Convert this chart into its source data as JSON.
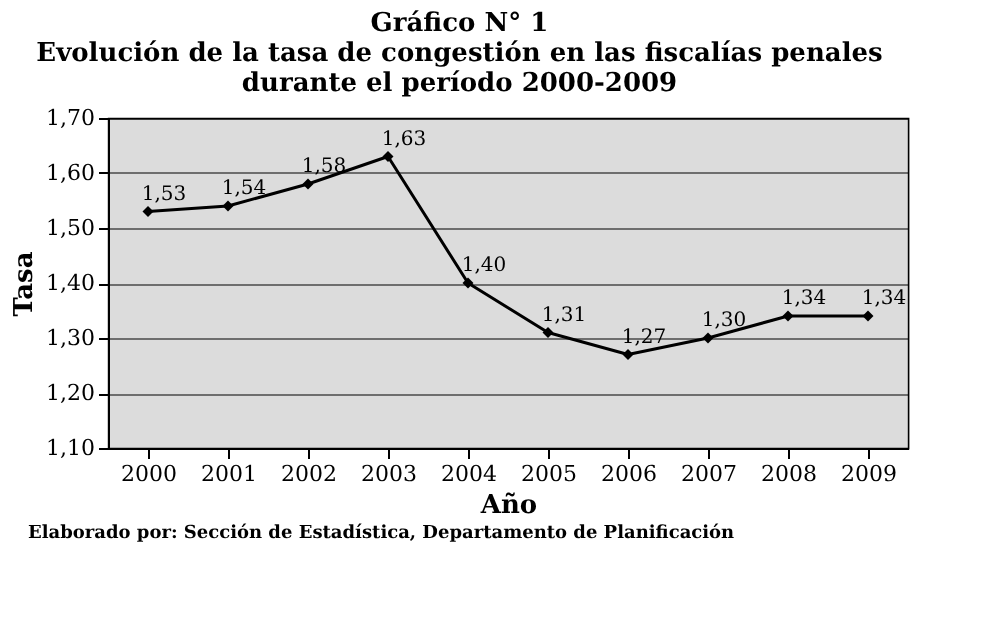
{
  "chart_data": {
    "type": "line",
    "title": "Gráfico N° 1",
    "subtitle": "Evolución de la tasa de congestión en las fiscalías penales durante el período 2000-2009",
    "xlabel": "Año",
    "ylabel": "Tasa",
    "categories": [
      "2000",
      "2001",
      "2002",
      "2003",
      "2004",
      "2005",
      "2006",
      "2007",
      "2008",
      "2009"
    ],
    "series": [
      {
        "color": "#000000",
        "values": [
          1.53,
          1.54,
          1.58,
          1.63,
          1.4,
          1.31,
          1.27,
          1.3,
          1.34,
          1.34
        ],
        "value_labels": [
          "1,53",
          "1,54",
          "1,58",
          "1,63",
          "1,40",
          "1,31",
          "1,27",
          "1,30",
          "1,34",
          "1,34"
        ]
      }
    ],
    "ylim": [
      1.1,
      1.7
    ],
    "yticks": [
      {
        "value": 1.1,
        "label": "1,10"
      },
      {
        "value": 1.2,
        "label": "1,20"
      },
      {
        "value": 1.3,
        "label": "1,30"
      },
      {
        "value": 1.4,
        "label": "1,40"
      },
      {
        "value": 1.5,
        "label": "1,50"
      },
      {
        "value": 1.6,
        "label": "1,60"
      },
      {
        "value": 1.7,
        "label": "1,70"
      }
    ],
    "grid": "y",
    "marker": "diamond",
    "line_style": "solid",
    "annotations": [
      "Elaborado por: Sección de Estadística, Departamento de Planificación"
    ]
  }
}
